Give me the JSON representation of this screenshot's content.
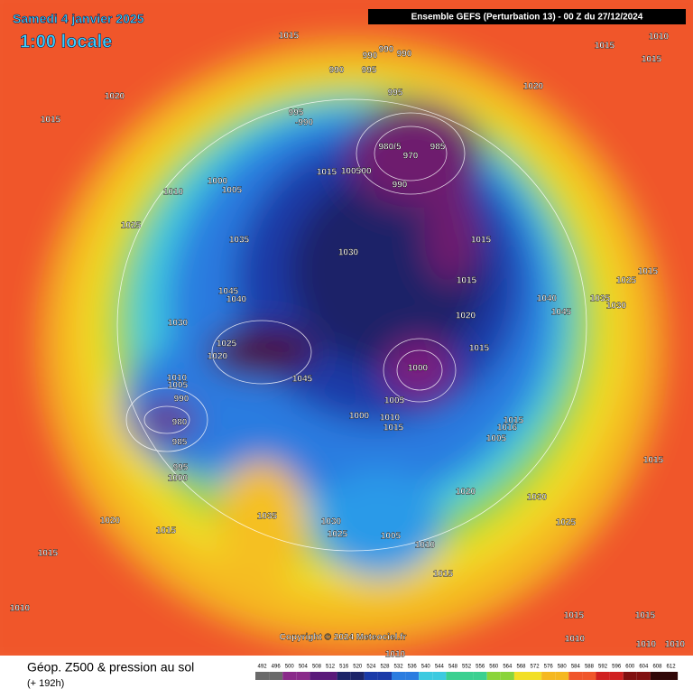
{
  "header": {
    "date": "Samedi 4 janvier 2025",
    "local_time": "1:00 locale",
    "model": "Ensemble GEFS  (Perturbation 13)  -  00 Z du 27/12/2024"
  },
  "map": {
    "pressure_labels": [
      1015,
      1020,
      1015,
      990,
      990,
      990,
      990,
      995,
      995,
      995,
      "-990",
      "980/5",
      970,
      985,
      990,
      1000,
      1005,
      1010,
      1015,
      1005,
      "00",
      1025,
      1035,
      1030,
      1045,
      1040,
      1030,
      1025,
      1020,
      1015,
      1015,
      1020,
      1015,
      1000,
      1005,
      1000,
      1010,
      1015,
      1010,
      1005,
      990,
      980,
      985,
      995,
      1000,
      1015,
      1010,
      1020,
      1015,
      1025,
      1015,
      1040,
      1045,
      1035,
      1030,
      1015,
      1016,
      1005,
      1020,
      1030,
      1025,
      1015,
      1035,
      1030,
      1025,
      1005,
      1010,
      1015,
      1020,
      1015,
      1015,
      1010,
      1015,
      1015,
      1010,
      1010,
      1010,
      1010,
      1045
    ],
    "copyright": "Copyright © 2024 Meteociel.fr"
  },
  "footer": {
    "title": "Géop. Z500 & pression au sol",
    "lead": "(+ 192h)",
    "colorbar": [
      492,
      496,
      500,
      504,
      508,
      512,
      516,
      520,
      524,
      528,
      532,
      536,
      540,
      544,
      548,
      552,
      556,
      560,
      564,
      568,
      572,
      576,
      580,
      584,
      588,
      592,
      596,
      600,
      604,
      608,
      612
    ]
  }
}
